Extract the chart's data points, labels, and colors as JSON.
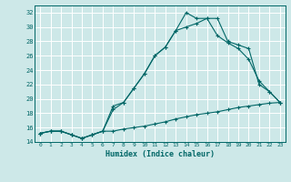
{
  "xlabel": "Humidex (Indice chaleur)",
  "bg_color": "#cde8e8",
  "line_color": "#006666",
  "grid_color": "#ffffff",
  "xlim": [
    -0.5,
    23.5
  ],
  "ylim": [
    14,
    33
  ],
  "xticks": [
    0,
    1,
    2,
    3,
    4,
    5,
    6,
    7,
    8,
    9,
    10,
    11,
    12,
    13,
    14,
    15,
    16,
    17,
    18,
    19,
    20,
    21,
    22,
    23
  ],
  "yticks": [
    14,
    16,
    18,
    20,
    22,
    24,
    26,
    28,
    30,
    32
  ],
  "line1_x": [
    0,
    1,
    2,
    3,
    4,
    5,
    6,
    7,
    8,
    9,
    10,
    11,
    12,
    13,
    14,
    15,
    16,
    17,
    18,
    19,
    20,
    21,
    22,
    23
  ],
  "line1_y": [
    15.2,
    15.5,
    15.5,
    15.0,
    14.5,
    15.0,
    15.5,
    18.5,
    19.5,
    21.5,
    23.5,
    26.0,
    27.2,
    29.5,
    30.0,
    30.5,
    31.2,
    31.2,
    28.0,
    27.5,
    27.0,
    22.0,
    21.0,
    19.5
  ],
  "line2_x": [
    0,
    1,
    2,
    3,
    4,
    5,
    6,
    7,
    8,
    9,
    10,
    11,
    12,
    13,
    14,
    15,
    16,
    17,
    18,
    19,
    20,
    21,
    22,
    23
  ],
  "line2_y": [
    15.2,
    15.5,
    15.5,
    15.0,
    14.5,
    15.0,
    15.5,
    19.0,
    19.5,
    21.5,
    23.5,
    26.0,
    27.2,
    29.5,
    32.0,
    31.2,
    31.2,
    28.8,
    27.8,
    27.0,
    25.5,
    22.5,
    21.0,
    19.5
  ],
  "line3_x": [
    0,
    1,
    2,
    3,
    4,
    5,
    6,
    7,
    8,
    9,
    10,
    11,
    12,
    13,
    14,
    15,
    16,
    17,
    18,
    19,
    20,
    21,
    22,
    23
  ],
  "line3_y": [
    15.2,
    15.5,
    15.5,
    15.0,
    14.5,
    15.0,
    15.5,
    15.5,
    15.8,
    16.0,
    16.2,
    16.5,
    16.8,
    17.2,
    17.5,
    17.8,
    18.0,
    18.2,
    18.5,
    18.8,
    19.0,
    19.2,
    19.4,
    19.5
  ]
}
